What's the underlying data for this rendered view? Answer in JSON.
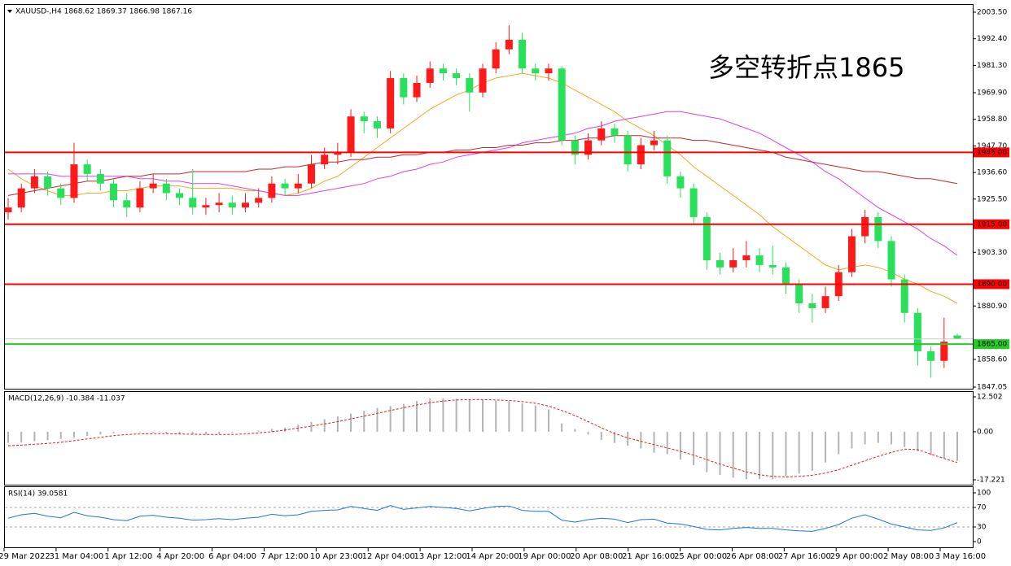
{
  "chart_data": [
    {
      "type": "candlestick",
      "title": "XAUUSD-,H4  1868.62 1869.37 1866.98 1867.16",
      "annotation": "多空转折点1865",
      "up_color": "#ff1a1a",
      "down_color": "#28e05a",
      "candles": [
        [
          1920,
          1926,
          1917,
          1922
        ],
        [
          1922,
          1932,
          1920,
          1930
        ],
        [
          1930,
          1938,
          1928,
          1935
        ],
        [
          1935,
          1937,
          1927,
          1930
        ],
        [
          1930,
          1932,
          1923,
          1926
        ],
        [
          1926,
          1949,
          1924,
          1940
        ],
        [
          1940,
          1942,
          1933,
          1936
        ],
        [
          1936,
          1938,
          1929,
          1932
        ],
        [
          1932,
          1934,
          1922,
          1925
        ],
        [
          1925,
          1928,
          1918,
          1922
        ],
        [
          1922,
          1933,
          1920,
          1930
        ],
        [
          1930,
          1936,
          1928,
          1932
        ],
        [
          1932,
          1934,
          1925,
          1928
        ],
        [
          1928,
          1930,
          1923,
          1926
        ],
        [
          1926,
          1938,
          1919,
          1922
        ],
        [
          1922,
          1926,
          1919,
          1923
        ],
        [
          1923,
          1928,
          1920,
          1924
        ],
        [
          1924,
          1927,
          1919,
          1922
        ],
        [
          1922,
          1928,
          1920,
          1924
        ],
        [
          1924,
          1930,
          1922,
          1926
        ],
        [
          1926,
          1935,
          1924,
          1932
        ],
        [
          1932,
          1934,
          1927,
          1930
        ],
        [
          1930,
          1936,
          1928,
          1932
        ],
        [
          1932,
          1944,
          1930,
          1940
        ],
        [
          1940,
          1947,
          1938,
          1944
        ],
        [
          1944,
          1949,
          1940,
          1945
        ],
        [
          1945,
          1963,
          1943,
          1960
        ],
        [
          1960,
          1962,
          1953,
          1958
        ],
        [
          1958,
          1960,
          1951,
          1955
        ],
        [
          1955,
          1979,
          1953,
          1976
        ],
        [
          1976,
          1978,
          1965,
          1968
        ],
        [
          1968,
          1977,
          1966,
          1974
        ],
        [
          1974,
          1983,
          1972,
          1980
        ],
        [
          1980,
          1982,
          1975,
          1978
        ],
        [
          1978,
          1980,
          1973,
          1976
        ],
        [
          1976,
          1978,
          1962,
          1970
        ],
        [
          1970,
          1982,
          1968,
          1980
        ],
        [
          1980,
          1991,
          1978,
          1988
        ],
        [
          1988,
          1998,
          1986,
          1992
        ],
        [
          1992,
          1995,
          1978,
          1980
        ],
        [
          1980,
          1982,
          1975,
          1978
        ],
        [
          1978,
          1982,
          1975,
          1980
        ],
        [
          1980,
          1981,
          1948,
          1950
        ],
        [
          1950,
          1952,
          1940,
          1944
        ],
        [
          1944,
          1953,
          1942,
          1950
        ],
        [
          1950,
          1958,
          1948,
          1955
        ],
        [
          1955,
          1957,
          1949,
          1952
        ],
        [
          1952,
          1954,
          1937,
          1940
        ],
        [
          1940,
          1951,
          1938,
          1948
        ],
        [
          1948,
          1954,
          1946,
          1950
        ],
        [
          1950,
          1952,
          1932,
          1935
        ],
        [
          1935,
          1937,
          1926,
          1930
        ],
        [
          1930,
          1932,
          1915,
          1918
        ],
        [
          1918,
          1920,
          1896,
          1900
        ],
        [
          1900,
          1903,
          1894,
          1897
        ],
        [
          1897,
          1905,
          1895,
          1900
        ],
        [
          1900,
          1908,
          1897,
          1902
        ],
        [
          1902,
          1905,
          1895,
          1898
        ],
        [
          1898,
          1906,
          1894,
          1897
        ],
        [
          1897,
          1899,
          1886,
          1890
        ],
        [
          1890,
          1892,
          1878,
          1882
        ],
        [
          1882,
          1886,
          1874,
          1880
        ],
        [
          1880,
          1889,
          1878,
          1885
        ],
        [
          1885,
          1898,
          1883,
          1895
        ],
        [
          1895,
          1913,
          1893,
          1910
        ],
        [
          1910,
          1921,
          1907,
          1918
        ],
        [
          1918,
          1920,
          1905,
          1908
        ],
        [
          1908,
          1910,
          1889,
          1892
        ],
        [
          1892,
          1894,
          1874,
          1878
        ],
        [
          1878,
          1880,
          1856,
          1862
        ],
        [
          1862,
          1864,
          1851,
          1858
        ],
        [
          1858,
          1876,
          1855,
          1866
        ],
        [
          1868.62,
          1869.37,
          1866.98,
          1867.16
        ]
      ],
      "moving_averages": [
        {
          "color": "#f5a623",
          "values": [
            1938,
            1934,
            1931,
            1929,
            1927,
            1927,
            1928,
            1928,
            1929,
            1929,
            1930,
            1931,
            1931,
            1931,
            1930,
            1930,
            1930,
            1930,
            1929,
            1929,
            1928,
            1927,
            1928,
            1930,
            1933,
            1935,
            1939,
            1943,
            1947,
            1951,
            1955,
            1959,
            1963,
            1966,
            1969,
            1971,
            1974,
            1976,
            1977,
            1978,
            1977,
            1976,
            1974,
            1971,
            1968,
            1965,
            1962,
            1958,
            1955,
            1952,
            1948,
            1944,
            1939,
            1935,
            1931,
            1927,
            1923,
            1919,
            1914,
            1910,
            1906,
            1902,
            1898,
            1896,
            1897,
            1898,
            1897,
            1895,
            1892,
            1890,
            1887,
            1885,
            1882
          ]
        },
        {
          "color": "#e040e0",
          "values": [
            1936,
            1936,
            1936,
            1936,
            1935,
            1935,
            1935,
            1935,
            1935,
            1935,
            1934,
            1934,
            1933,
            1933,
            1932,
            1932,
            1932,
            1931,
            1930,
            1929,
            1928,
            1927,
            1927,
            1928,
            1929,
            1930,
            1931,
            1932,
            1934,
            1935,
            1937,
            1938,
            1940,
            1941,
            1943,
            1944,
            1945,
            1946,
            1947,
            1949,
            1950,
            1951,
            1952,
            1953,
            1955,
            1956,
            1958,
            1959,
            1960,
            1961,
            1962,
            1962,
            1961,
            1960,
            1959,
            1957,
            1955,
            1953,
            1950,
            1947,
            1944,
            1941,
            1937,
            1934,
            1930,
            1926,
            1922,
            1919,
            1916,
            1913,
            1909,
            1906,
            1902
          ]
        },
        {
          "color": "#c0282d",
          "values": [
            1927,
            1928,
            1929,
            1930,
            1931,
            1932,
            1933,
            1933,
            1934,
            1935,
            1935,
            1936,
            1936,
            1936,
            1937,
            1937,
            1937,
            1937,
            1937,
            1938,
            1938,
            1939,
            1939,
            1940,
            1941,
            1941,
            1942,
            1942,
            1943,
            1943,
            1944,
            1944,
            1945,
            1945,
            1946,
            1946,
            1947,
            1947,
            1948,
            1948,
            1949,
            1949,
            1950,
            1950,
            1951,
            1951,
            1952,
            1952,
            1952,
            1951,
            1951,
            1951,
            1950,
            1950,
            1949,
            1948,
            1947,
            1946,
            1945,
            1943,
            1942,
            1941,
            1940,
            1939,
            1938,
            1937,
            1937,
            1936,
            1935,
            1934,
            1934,
            1933,
            1932
          ]
        }
      ],
      "levels": [
        {
          "value": 1945,
          "label": "1945.00",
          "color": "#ff0000"
        },
        {
          "value": 1915,
          "label": "1915.00",
          "color": "#ff0000"
        },
        {
          "value": 1890,
          "label": "1890.00",
          "color": "#ff0000"
        },
        {
          "value": 1865,
          "label": "1865.00",
          "color": "#22cc22"
        }
      ],
      "ylim": [
        1847.05,
        2003.5
      ],
      "yticks": [
        {
          "value": 2003.5,
          "label": "2003.50"
        },
        {
          "value": 1992.4,
          "label": "1992.40"
        },
        {
          "value": 1981.3,
          "label": "1981.30"
        },
        {
          "value": 1969.9,
          "label": "1969.90"
        },
        {
          "value": 1958.8,
          "label": "1958.80"
        },
        {
          "value": 1947.7,
          "label": "1947.70"
        },
        {
          "value": 1936.6,
          "label": "1936.60"
        },
        {
          "value": 1925.5,
          "label": "1925.50"
        },
        {
          "value": 1903.3,
          "label": "1903.30"
        },
        {
          "value": 1880.9,
          "label": "1880.90"
        },
        {
          "value": 1858.6,
          "label": "1858.60"
        },
        {
          "value": 1847.05,
          "label": "1847.05"
        }
      ],
      "x_labels": [
        "29 Mar 2022",
        "31 Mar 04:00",
        "1 Apr 12:00",
        "4 Apr 20:00",
        "6 Apr 04:00",
        "7 Apr 12:00",
        "10 Apr 23:00",
        "12 Apr 04:00",
        "13 Apr 12:00",
        "14 Apr 20:00",
        "19 Apr 00:00",
        "20 Apr 08:00",
        "21 Apr 16:00",
        "25 Apr 00:00",
        "26 Apr 08:00",
        "27 Apr 16:00",
        "29 Apr 00:00",
        "2 May 08:00",
        "3 May 16:00"
      ]
    },
    {
      "type": "macd",
      "title": "MACD(12,26,9) -10.384 -11.037",
      "histogram_color": "#b4b4b4",
      "signal_color": "#e02020",
      "histogram": [
        -4,
        -3.8,
        -3.4,
        -3,
        -2.6,
        -2,
        -1.5,
        -1,
        -0.5,
        0,
        -0.2,
        -0.4,
        -0.6,
        -0.8,
        -1,
        -1,
        -0.8,
        -0.4,
        0,
        0.5,
        1,
        1.5,
        2.5,
        3.5,
        4.5,
        5.5,
        6.5,
        7.5,
        8.5,
        9.2,
        10,
        11,
        12,
        12,
        11.8,
        11.6,
        11.4,
        11.2,
        11,
        10.2,
        9.4,
        8,
        3,
        1,
        -1,
        -3,
        -4,
        -5,
        -6,
        -7.5,
        -8,
        -10,
        -12,
        -14.5,
        -15.5,
        -16.5,
        -17,
        -17,
        -17,
        -16,
        -15,
        -14,
        -11,
        -8,
        -6,
        -4.5,
        -4,
        -4.5,
        -5.5,
        -7,
        -8.5,
        -9.5,
        -10.384
      ],
      "signal": [
        -5,
        -4.8,
        -4.5,
        -4.2,
        -3.8,
        -3.2,
        -2.6,
        -2,
        -1.4,
        -1,
        -0.8,
        -0.7,
        -0.7,
        -0.8,
        -0.9,
        -1,
        -1,
        -1,
        -0.8,
        -0.4,
        0,
        0.6,
        1.3,
        2,
        2.8,
        3.6,
        4.6,
        5.6,
        6.6,
        7.6,
        8.6,
        9.6,
        10.4,
        11,
        11.4,
        11.5,
        11.5,
        11.4,
        11.2,
        10.8,
        10.2,
        9.2,
        7.6,
        5.8,
        3.6,
        1.4,
        -0.6,
        -2.2,
        -3.4,
        -4.6,
        -5.8,
        -7,
        -8.4,
        -10,
        -11.6,
        -13,
        -14.4,
        -15.4,
        -16,
        -16.2,
        -16,
        -15.6,
        -14.8,
        -13.6,
        -12,
        -10.4,
        -8.8,
        -7.4,
        -6.2,
        -6.4,
        -8,
        -9.6,
        -11.037
      ],
      "ylim": [
        -17.221,
        12.502
      ],
      "yticks": [
        12.502,
        {
          "value": 0,
          "label": "0.00"
        },
        -17.221
      ]
    },
    {
      "type": "rsi",
      "title": "RSI(14) 39.0581",
      "color": "#1e78d2",
      "values": [
        48,
        55,
        58,
        52,
        49,
        60,
        53,
        50,
        45,
        43,
        52,
        54,
        50,
        48,
        44,
        45,
        47,
        45,
        48,
        50,
        56,
        53,
        55,
        62,
        64,
        65,
        72,
        68,
        64,
        74,
        66,
        69,
        72,
        70,
        68,
        63,
        68,
        72,
        73,
        64,
        62,
        62,
        44,
        40,
        45,
        48,
        46,
        39,
        45,
        46,
        38,
        36,
        31,
        25,
        24,
        27,
        29,
        27,
        27,
        24,
        22,
        21,
        27,
        35,
        48,
        55,
        46,
        36,
        30,
        24,
        23,
        28,
        39.0581
      ],
      "ylim": [
        0,
        100
      ],
      "yticks": [
        100,
        70,
        30,
        0
      ],
      "grid": "dashed"
    }
  ]
}
